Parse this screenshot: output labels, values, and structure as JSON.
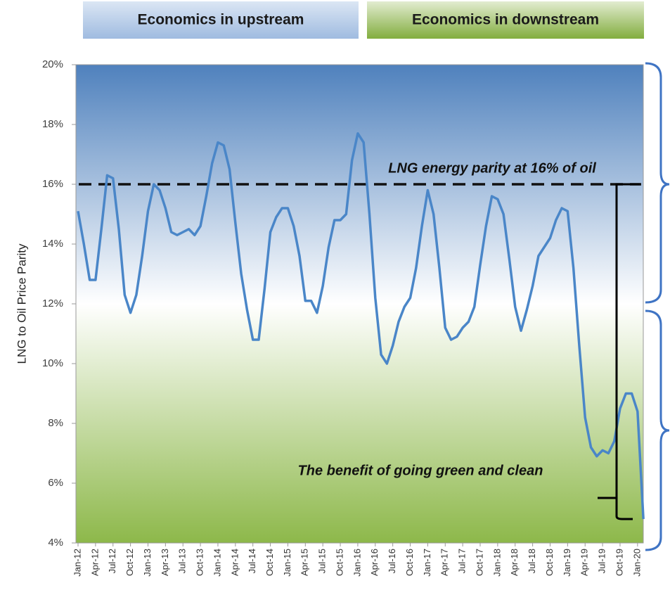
{
  "chart_data": {
    "type": "line",
    "headers": [
      "Economics in upstream",
      "Economics in downstream"
    ],
    "ylabel": "LNG to Oil Price Parity",
    "annotations": [
      "LNG energy parity at 16% of oil",
      "The benefit of going green and clean"
    ],
    "reference_line": 16,
    "categories": [
      "Jan-12",
      null,
      null,
      "Apr-12",
      null,
      null,
      "Jul-12",
      null,
      null,
      "Oct-12",
      null,
      null,
      "Jan-13",
      null,
      null,
      "Apr-13",
      null,
      null,
      "Jul-13",
      null,
      null,
      "Oct-13",
      null,
      null,
      "Jan-14",
      null,
      null,
      "Apr-14",
      null,
      null,
      "Jul-14",
      null,
      null,
      "Oct-14",
      null,
      null,
      "Jan-15",
      null,
      null,
      "Apr-15",
      null,
      null,
      "Jul-15",
      null,
      null,
      "Oct-15",
      null,
      null,
      "Jan-16",
      null,
      null,
      "Apr-16",
      null,
      null,
      "Jul-16",
      null,
      null,
      "Oct-16",
      null,
      null,
      "Jan-17",
      null,
      null,
      "Apr-17",
      null,
      null,
      "Jul-17",
      null,
      null,
      "Oct-17",
      null,
      null,
      "Jan-18",
      null,
      null,
      "Apr-18",
      null,
      null,
      "Jul-18",
      null,
      null,
      "Oct-18",
      null,
      null,
      "Jan-19",
      null,
      null,
      "Apr-19",
      null,
      null,
      "Jul-19",
      null,
      null,
      "Oct-19",
      null,
      null,
      "Jan-20",
      null
    ],
    "series": [
      {
        "name": "LNG to Oil Price Parity",
        "color": "#4a86c8",
        "values": [
          15.1,
          14.0,
          12.8,
          12.8,
          14.5,
          16.3,
          16.2,
          14.5,
          12.3,
          11.7,
          12.3,
          13.6,
          15.1,
          16.0,
          15.8,
          15.2,
          14.4,
          14.3,
          14.4,
          14.5,
          14.3,
          14.6,
          15.6,
          16.7,
          17.4,
          17.3,
          16.5,
          14.7,
          13.0,
          11.8,
          10.8,
          10.8,
          12.5,
          14.4,
          14.9,
          15.2,
          15.2,
          14.6,
          13.6,
          12.1,
          12.1,
          11.7,
          12.6,
          13.9,
          14.8,
          14.8,
          15.0,
          16.8,
          17.7,
          17.4,
          15.0,
          12.2,
          10.3,
          10.0,
          10.6,
          11.4,
          11.9,
          12.2,
          13.2,
          14.6,
          15.8,
          15.0,
          13.2,
          11.2,
          10.8,
          10.9,
          11.2,
          11.4,
          11.9,
          13.3,
          14.6,
          15.6,
          15.5,
          15.0,
          13.5,
          11.9,
          11.1,
          11.8,
          12.6,
          13.6,
          13.9,
          14.2,
          14.8,
          15.2,
          15.1,
          13.2,
          10.6,
          8.2,
          7.2,
          6.9,
          7.1,
          7.0,
          7.4,
          8.5,
          9.0,
          9.0,
          8.4,
          4.8
        ]
      }
    ],
    "ylim": [
      4,
      20
    ],
    "yticks": [
      {
        "value": 4,
        "label": "4%"
      },
      {
        "value": 6,
        "label": "6%"
      },
      {
        "value": 8,
        "label": "8%"
      },
      {
        "value": 10,
        "label": "10%"
      },
      {
        "value": 12,
        "label": "12%"
      },
      {
        "value": 14,
        "label": "14%"
      },
      {
        "value": 16,
        "label": "16%"
      },
      {
        "value": 18,
        "label": "18%"
      },
      {
        "value": 20,
        "label": "20%"
      }
    ]
  }
}
